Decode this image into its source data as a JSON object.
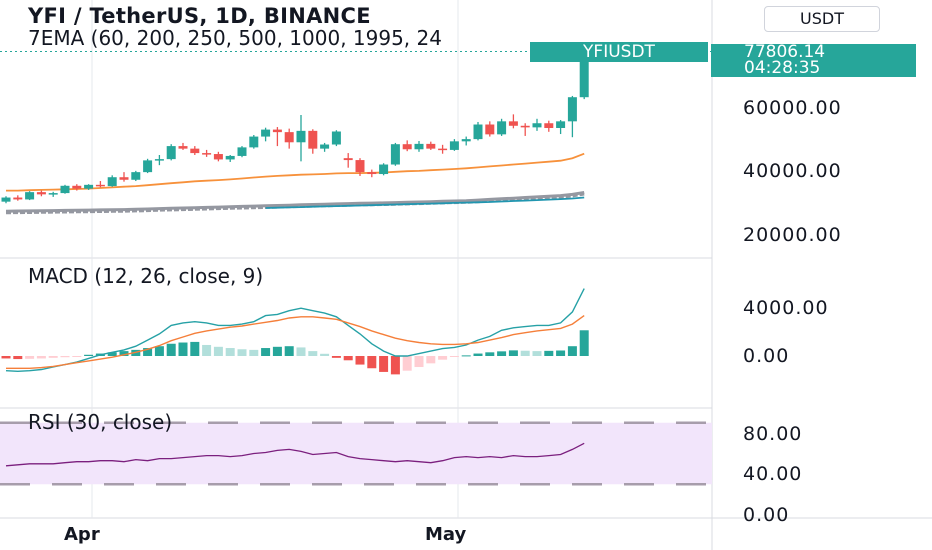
{
  "header": {
    "title": "YFI / TetherUS, 1D, BINANCE",
    "subtitle": "7EMA (60, 200, 250, 500, 1000, 1995, 24",
    "currency_button": "USDT"
  },
  "price_tags": {
    "symbol": "YFIUSDT",
    "last_price": "77806.14",
    "countdown": "04:28:35"
  },
  "panes": {
    "macd_label": "MACD (12, 26, close, 9)",
    "rsi_label": "RSI (30, close)"
  },
  "price_axis": [
    "60000.00",
    "40000.00",
    "20000.00"
  ],
  "macd_axis": [
    "4000.00",
    "0.00"
  ],
  "rsi_axis": [
    "80.00",
    "40.00",
    "0.00"
  ],
  "time_axis": [
    "Apr",
    "May"
  ],
  "colors": {
    "up": "#26a69a",
    "down": "#ef5350",
    "ema_short": "#f7913b",
    "ema_mid": "#9598a1",
    "ema_long": "#2196b0",
    "rsi_line": "#7b1f7e",
    "rsi_band": "#f2e5fb",
    "macd_line": "#26a1a6",
    "signal_line": "#f57f3a"
  },
  "chart_data": [
    {
      "type": "candlestick",
      "title": "YFI / TetherUS, 1D, BINANCE",
      "ylim": [
        17000,
        83000
      ],
      "y_ticks": [
        20000,
        40000,
        60000
      ],
      "x_ticks": [
        {
          "label": "Apr",
          "index": 7
        },
        {
          "label": "May",
          "index": 37
        }
      ],
      "ohlc": [
        [
          30500,
          32200,
          30000,
          31800
        ],
        [
          31800,
          32500,
          30800,
          31200
        ],
        [
          31200,
          33800,
          31000,
          33500
        ],
        [
          33500,
          34000,
          32200,
          32800
        ],
        [
          32800,
          33600,
          32000,
          33200
        ],
        [
          33200,
          35800,
          33000,
          35500
        ],
        [
          35500,
          36000,
          34000,
          34600
        ],
        [
          34600,
          36000,
          34200,
          35800
        ],
        [
          35800,
          37000,
          35000,
          35400
        ],
        [
          35400,
          38800,
          35200,
          38200
        ],
        [
          38200,
          39800,
          36800,
          37400
        ],
        [
          37400,
          40200,
          37000,
          39800
        ],
        [
          39800,
          44000,
          39500,
          43500
        ],
        [
          43500,
          45200,
          42000,
          43900
        ],
        [
          43900,
          48600,
          43500,
          48000
        ],
        [
          48000,
          49000,
          46800,
          47200
        ],
        [
          47200,
          48000,
          45200,
          45800
        ],
        [
          45800,
          46800,
          44600,
          45500
        ],
        [
          45500,
          46200,
          43200,
          43800
        ],
        [
          43800,
          45200,
          43000,
          44900
        ],
        [
          44900,
          48000,
          44500,
          47600
        ],
        [
          47600,
          51500,
          47200,
          51000
        ],
        [
          51000,
          53800,
          49500,
          53200
        ],
        [
          53200,
          54000,
          48000,
          52400
        ],
        [
          52400,
          53500,
          47200,
          49200
        ],
        [
          49200,
          57800,
          43200,
          52800
        ],
        [
          52800,
          53300,
          45600,
          47200
        ],
        [
          47200,
          49000,
          46200,
          48500
        ],
        [
          48500,
          53000,
          48000,
          52600
        ],
        [
          44200,
          45800,
          41200,
          43600
        ],
        [
          43600,
          44200,
          38600,
          39800
        ],
        [
          39800,
          40600,
          38200,
          39200
        ],
        [
          39200,
          42600,
          38800,
          42200
        ],
        [
          42200,
          49000,
          41800,
          48600
        ],
        [
          48600,
          49800,
          46400,
          47000
        ],
        [
          47000,
          49600,
          46200,
          48700
        ],
        [
          48700,
          49400,
          46800,
          47200
        ],
        [
          47200,
          48400,
          45600,
          46800
        ],
        [
          46800,
          50200,
          46500,
          49500
        ],
        [
          49500,
          51000,
          48200,
          50200
        ],
        [
          50200,
          55600,
          49800,
          54800
        ],
        [
          54800,
          55800,
          51000,
          51700
        ],
        [
          51700,
          56600,
          51200,
          55800
        ],
        [
          55800,
          58000,
          53600,
          54400
        ],
        [
          54400,
          55200,
          51200,
          53900
        ],
        [
          53900,
          56600,
          52800,
          55200
        ],
        [
          55200,
          56000,
          52500,
          53700
        ],
        [
          53700,
          56200,
          51800,
          55800
        ],
        [
          55800,
          63800,
          50800,
          63400
        ],
        [
          63400,
          78200,
          62800,
          77806
        ]
      ]
    },
    {
      "type": "line",
      "title": "7EMA (60, 200, 250, 500, 1000, 1995, 24",
      "series": [
        {
          "values": [
            34000,
            34000,
            34100,
            34200,
            34300,
            34400,
            34500,
            34600,
            34800,
            35000,
            35200,
            35400,
            35700,
            36000,
            36300,
            36600,
            36900,
            37100,
            37300,
            37500,
            37800,
            38100,
            38400,
            38600,
            38800,
            39000,
            39100,
            39200,
            39400,
            39500,
            39500,
            39600,
            39700,
            39900,
            40100,
            40200,
            40400,
            40600,
            40800,
            41000,
            41300,
            41600,
            41900,
            42200,
            42500,
            42800,
            43100,
            43400,
            44200,
            45600
          ]
        },
        {
          "values": [
            27500,
            27550,
            27600,
            27650,
            27700,
            27750,
            27800,
            27850,
            27900,
            27950,
            28000,
            28100,
            28200,
            28300,
            28400,
            28500,
            28600,
            28700,
            28800,
            28900,
            29000,
            29100,
            29200,
            29300,
            29400,
            29500,
            29600,
            29700,
            29800,
            29900,
            30000,
            30050,
            30100,
            30200,
            30300,
            30400,
            30500,
            30600,
            30700,
            30800,
            31000,
            31200,
            31400,
            31600,
            31800,
            32000,
            32200,
            32400,
            32800,
            33400
          ]
        },
        {
          "values": [
            27000,
            27050,
            27100,
            27150,
            27200,
            27250,
            27300,
            27350,
            27400,
            27450,
            27500,
            27600,
            27700,
            27800,
            27900,
            28000,
            28100,
            28200,
            28300,
            28400,
            28500,
            28600,
            28700,
            28800,
            28900,
            29000,
            29100,
            29200,
            29300,
            29400,
            29500,
            29550,
            29600,
            29700,
            29800,
            29900,
            30000,
            30100,
            30200,
            30300,
            30500,
            30700,
            30900,
            31100,
            31300,
            31500,
            31700,
            31900,
            32300,
            32900
          ]
        },
        {
          "x_start": 22,
          "values": [
            28500,
            28600,
            28700,
            28800,
            28900,
            29000,
            29100,
            29200,
            29300,
            29400,
            29500,
            29600,
            29700,
            29800,
            29900,
            30000,
            30100,
            30200,
            30300,
            30400,
            30550,
            30700,
            30850,
            31000,
            31150,
            31300,
            31500,
            31800
          ]
        }
      ]
    },
    {
      "type": "bar",
      "title": "MACD (12, 26, close, 9)",
      "ylim": [
        -1000,
        6000
      ],
      "y_ticks": [
        0,
        4000
      ],
      "histogram": [
        -200,
        -250,
        -230,
        -200,
        -150,
        -100,
        -60,
        100,
        200,
        300,
        400,
        500,
        650,
        800,
        1000,
        1100,
        1150,
        900,
        750,
        650,
        550,
        500,
        650,
        750,
        800,
        700,
        400,
        180,
        -150,
        -350,
        -700,
        -1000,
        -1300,
        -1500,
        -1200,
        -900,
        -600,
        -300,
        -50,
        50,
        200,
        300,
        380,
        460,
        430,
        400,
        420,
        450,
        800,
        2100
      ],
      "series": [
        {
          "values": [
            -1200,
            -1250,
            -1200,
            -1100,
            -900,
            -700,
            -500,
            -200,
            100,
            300,
            500,
            800,
            1300,
            1800,
            2500,
            2700,
            2800,
            2700,
            2500,
            2500,
            2600,
            2800,
            3300,
            3400,
            3700,
            3900,
            3700,
            3500,
            3200,
            2500,
            1800,
            1000,
            400,
            0,
            0,
            200,
            400,
            600,
            700,
            900,
            1300,
            1600,
            2100,
            2300,
            2400,
            2500,
            2500,
            2700,
            3600,
            5500
          ]
        },
        {
          "values": [
            -1000,
            -1000,
            -1000,
            -950,
            -850,
            -700,
            -550,
            -400,
            -250,
            -100,
            100,
            300,
            550,
            850,
            1250,
            1550,
            1850,
            2050,
            2200,
            2350,
            2450,
            2600,
            2750,
            2900,
            3100,
            3200,
            3200,
            3100,
            3000,
            2700,
            2400,
            2050,
            1750,
            1450,
            1250,
            1100,
            1000,
            950,
            950,
            1000,
            1100,
            1300,
            1500,
            1750,
            1900,
            2050,
            2150,
            2250,
            2600,
            3300
          ]
        }
      ]
    },
    {
      "type": "line",
      "title": "RSI (30, close)",
      "ylim": [
        0,
        100
      ],
      "y_ticks": [
        0,
        40,
        80
      ],
      "band": [
        30,
        90
      ],
      "series": [
        {
          "values": [
            48,
            49,
            50,
            50,
            50,
            51,
            52,
            52,
            53,
            53,
            52,
            54,
            53,
            55,
            55,
            56,
            57,
            58,
            58,
            57,
            58,
            60,
            61,
            63,
            64,
            62,
            59,
            60,
            61,
            57,
            55,
            54,
            53,
            52,
            53,
            52,
            51,
            53,
            56,
            57,
            56,
            57,
            56,
            58,
            57,
            57,
            58,
            59,
            64,
            70
          ]
        }
      ]
    }
  ]
}
